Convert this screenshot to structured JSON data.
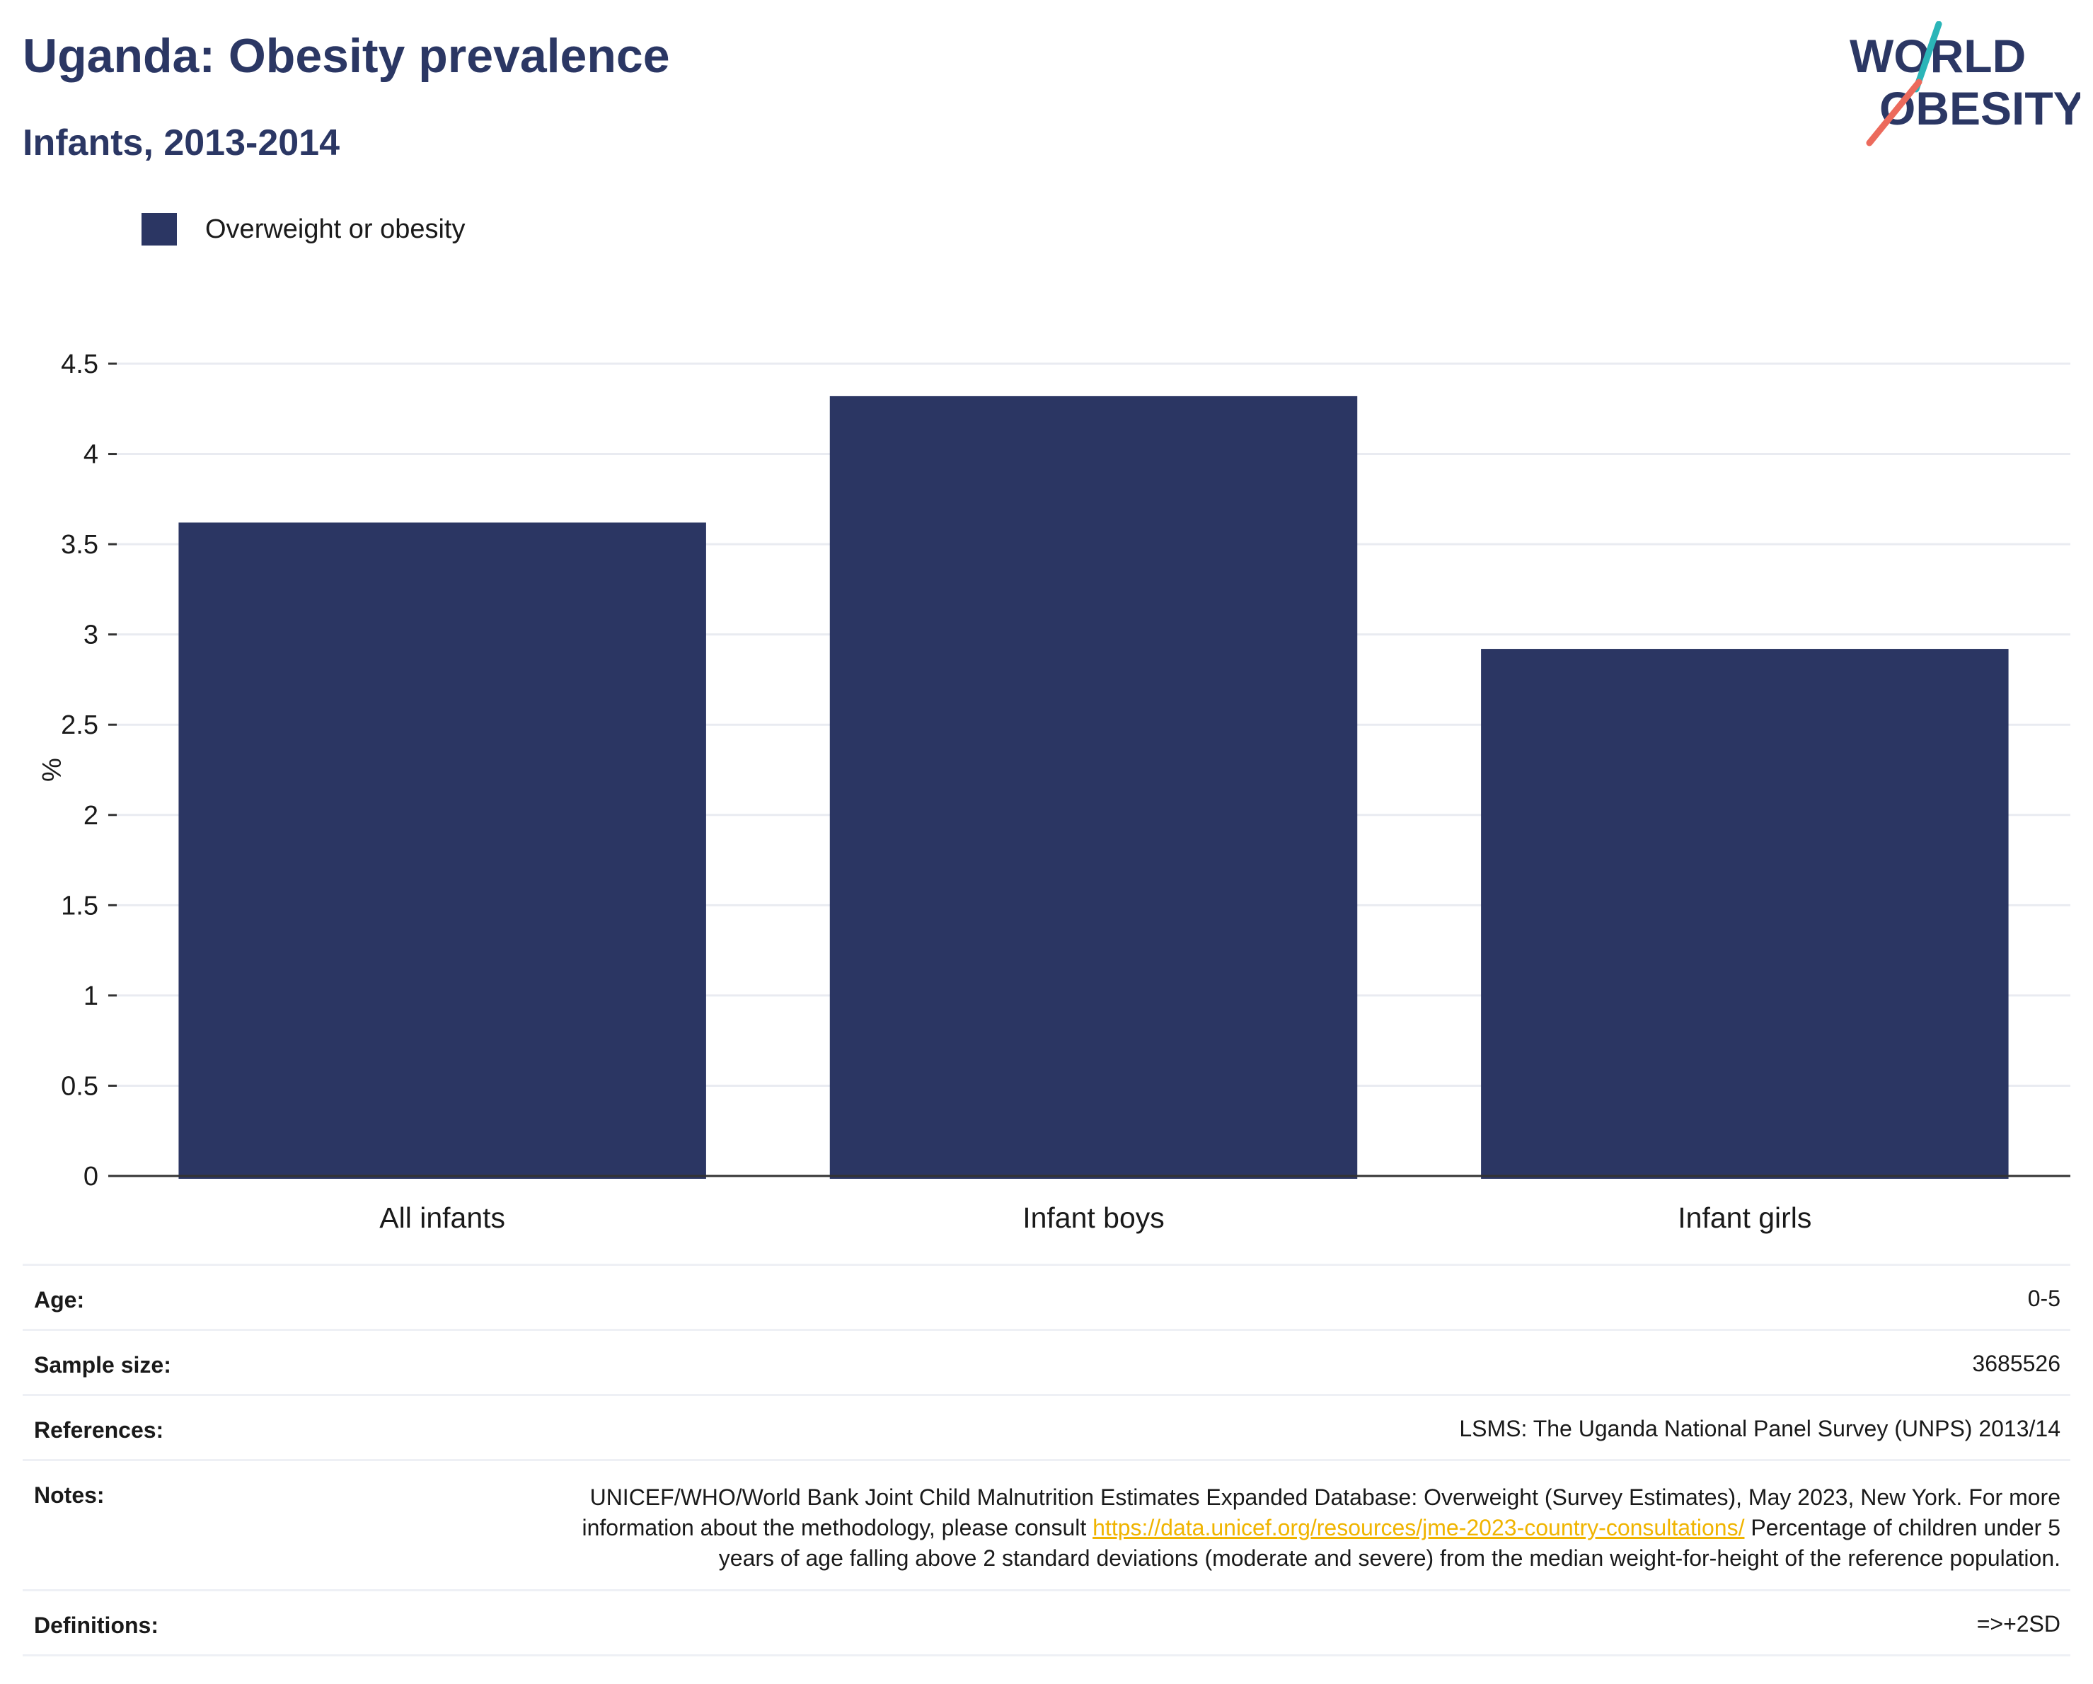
{
  "header": {
    "title": "Uganda: Obesity prevalence",
    "subtitle": "Infants, 2013-2014"
  },
  "logo": {
    "line1": "WORLD",
    "line2": "OBESITY"
  },
  "colors": {
    "bar": "#2b3663",
    "title": "#2b3764",
    "link": "#f0b400",
    "logo_teal": "#2bb5b8",
    "logo_coral": "#ec6a5c"
  },
  "chart_data": {
    "type": "bar",
    "title": "Uganda: Obesity prevalence",
    "subtitle": "Infants, 2013-2014",
    "categories": [
      "All infants",
      "Infant boys",
      "Infant girls"
    ],
    "series": [
      {
        "name": "Overweight or obesity",
        "values": [
          3.62,
          4.32,
          2.92
        ]
      }
    ],
    "xlabel": "",
    "ylabel": "%",
    "ylim": [
      0,
      4.5
    ],
    "yticks": [
      0,
      0.5,
      1,
      1.5,
      2,
      2.5,
      3,
      3.5,
      4,
      4.5
    ],
    "ytick_labels": [
      "0",
      "0.5",
      "1",
      "1.5",
      "2",
      "2.5",
      "3",
      "3.5",
      "4",
      "4.5"
    ],
    "grid": true,
    "legend_position": "top-left"
  },
  "meta": {
    "age_label": "Age:",
    "age_value": "0-5",
    "sample_label": "Sample size:",
    "sample_value": "3685526",
    "references_label": "References:",
    "references_value": "LSMS: The Uganda National Panel Survey (UNPS) 2013/14",
    "notes_label": "Notes:",
    "notes_part1": "UNICEF/WHO/World Bank Joint Child Malnutrition Estimates Expanded Database: Overweight (Survey Estimates), May 2023, New York. For more information about the methodology, please consult ",
    "notes_link": "https://data.unicef.org/resources/jme-2023-country-consultations/",
    "notes_part2": " Percentage of children under 5 years of age falling above 2 standard deviations (moderate and severe) from the median weight-for-height of the reference population.",
    "definitions_label": "Definitions:",
    "definitions_value": "=>+2SD"
  }
}
